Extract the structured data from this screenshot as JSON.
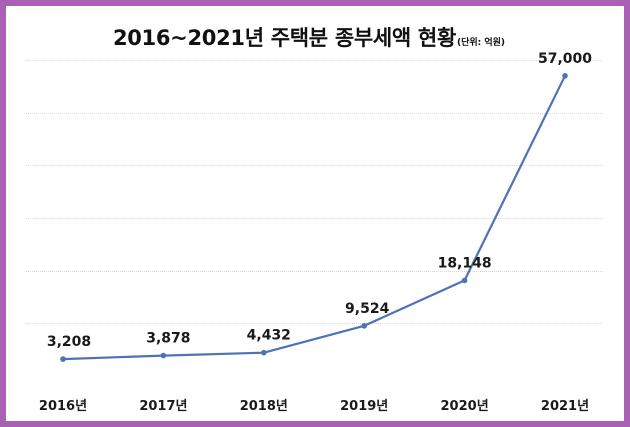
{
  "chart_data": {
    "type": "line",
    "title": "2016~2021년 주택분 종부세액 현황",
    "subtitle": "(단위: 억원)",
    "categories": [
      "2016년",
      "2017년",
      "2018년",
      "2019년",
      "2020년",
      "2021년"
    ],
    "series": [
      {
        "values": [
          3208,
          3878,
          4432,
          9524,
          18148,
          57000
        ]
      }
    ],
    "data_labels": [
      "3,208",
      "3,878",
      "4,432",
      "9,524",
      "18,148",
      "57,000"
    ],
    "ylim": [
      0,
      60000
    ],
    "grid": true,
    "line_color": "#4e72b8",
    "border_color": "#a861b5"
  }
}
